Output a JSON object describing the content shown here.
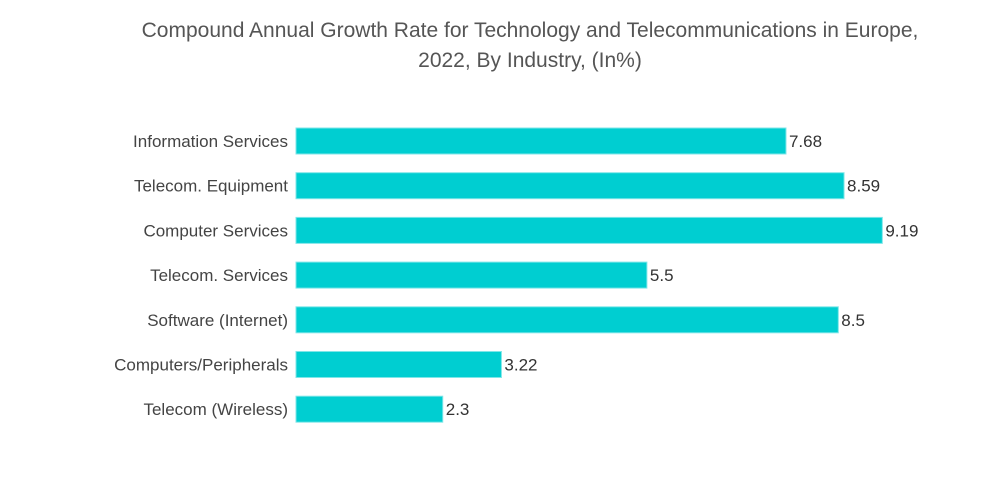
{
  "chart_data": {
    "type": "bar",
    "orientation": "horizontal",
    "title": "Compound Annual Growth Rate for Technology and Telecommunications in Europe, 2022, By Industry, (In%)",
    "title_lines": [
      "Compound Annual Growth Rate for Technology and Telecommunications in Europe,",
      "2022, By Industry, (In%)"
    ],
    "categories": [
      "Information Services",
      "Telecom. Equipment",
      "Computer Services",
      "Telecom. Services",
      "Software (Internet)",
      "Computers/Peripherals",
      "Telecom (Wireless)"
    ],
    "values": [
      7.68,
      8.59,
      9.19,
      5.5,
      8.5,
      3.22,
      2.3
    ],
    "value_labels": [
      "7.68",
      "8.59",
      "9.19",
      "5.5",
      "8.5",
      "3.22",
      "2.3"
    ],
    "xlabel": "",
    "ylabel": "",
    "xlim": [
      0,
      9.19
    ],
    "grid": false,
    "legend": "none",
    "bar_color": "#00CED1"
  }
}
